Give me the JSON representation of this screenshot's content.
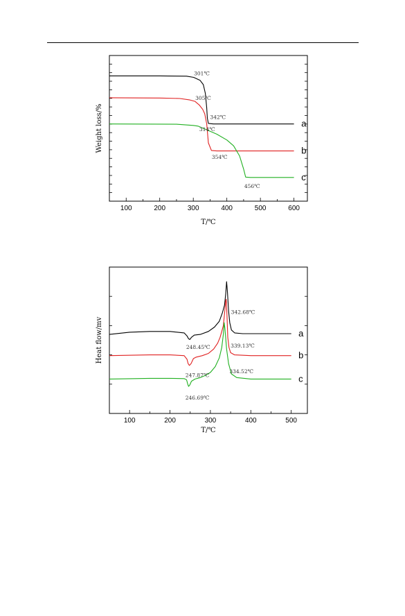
{
  "chart_data": [
    {
      "type": "line",
      "id": "tga",
      "xlabel": "T/℃",
      "ylabel": "Weight loss/%",
      "xlim": [
        50,
        640
      ],
      "ylim": [
        0,
        100
      ],
      "xticks": [
        100,
        200,
        300,
        400,
        500,
        600
      ],
      "y_tick_count": 17,
      "series": [
        {
          "name": "a",
          "color": "#000000",
          "points": [
            [
              50,
              86
            ],
            [
              200,
              86
            ],
            [
              280,
              85.8
            ],
            [
              301,
              85
            ],
            [
              320,
              83
            ],
            [
              330,
              80
            ],
            [
              336,
              74
            ],
            [
              340,
              64
            ],
            [
              342,
              57
            ],
            [
              345,
              53.4
            ],
            [
              360,
              53
            ],
            [
              600,
              53
            ]
          ]
        },
        {
          "name": "b",
          "color": "#e02020",
          "points": [
            [
              50,
              71
            ],
            [
              200,
              70.8
            ],
            [
              260,
              70.5
            ],
            [
              290,
              69.5
            ],
            [
              305,
              68.5
            ],
            [
              318,
              66
            ],
            [
              328,
              63
            ],
            [
              334,
              60
            ],
            [
              340,
              53
            ],
            [
              345,
              40
            ],
            [
              354,
              34.8
            ],
            [
              370,
              34.5
            ],
            [
              600,
              34.5
            ]
          ]
        },
        {
          "name": "c",
          "color": "#20b020",
          "points": [
            [
              50,
              53
            ],
            [
              250,
              52.8
            ],
            [
              300,
              52
            ],
            [
              314,
              51.5
            ],
            [
              340,
              49
            ],
            [
              370,
              46
            ],
            [
              400,
              42
            ],
            [
              420,
              38
            ],
            [
              438,
              31
            ],
            [
              450,
              22
            ],
            [
              456,
              16.5
            ],
            [
              470,
              16.3
            ],
            [
              600,
              16.3
            ]
          ]
        }
      ],
      "annotations": [
        {
          "text": "301℃",
          "x": 302,
          "y": 86.5
        },
        {
          "text": "305℃",
          "x": 306,
          "y": 69.5
        },
        {
          "text": "342℃",
          "x": 350,
          "y": 56.5
        },
        {
          "text": "314℃",
          "x": 318,
          "y": 48
        },
        {
          "text": "354℃",
          "x": 355,
          "y": 29
        },
        {
          "text": "456℃",
          "x": 452,
          "y": 9
        }
      ],
      "curve_labels": [
        {
          "text": "a",
          "x": 622,
          "y": 53
        },
        {
          "text": "b",
          "x": 622,
          "y": 34.5
        },
        {
          "text": "c",
          "x": 622,
          "y": 16.3
        }
      ]
    },
    {
      "type": "line",
      "id": "dsc",
      "xlabel": "T/℃",
      "ylabel": "Heat flow/mv",
      "xlim": [
        50,
        540
      ],
      "ylim": [
        0,
        100
      ],
      "xticks": [
        100,
        200,
        300,
        400,
        500
      ],
      "y_tick_count": 5,
      "series": [
        {
          "name": "a",
          "color": "#000000",
          "points": [
            [
              50,
              54
            ],
            [
              100,
              55.5
            ],
            [
              150,
              56
            ],
            [
              200,
              56
            ],
            [
              235,
              55
            ],
            [
              242,
              53
            ],
            [
              246,
              51
            ],
            [
              249,
              50.5
            ],
            [
              253,
              52
            ],
            [
              260,
              53.5
            ],
            [
              275,
              54
            ],
            [
              295,
              56
            ],
            [
              310,
              59
            ],
            [
              322,
              63
            ],
            [
              330,
              69
            ],
            [
              335,
              74
            ],
            [
              338,
              82
            ],
            [
              340,
              90
            ],
            [
              342,
              84
            ],
            [
              345,
              70
            ],
            [
              348,
              62
            ],
            [
              352,
              57
            ],
            [
              360,
              55
            ],
            [
              380,
              54.5
            ],
            [
              500,
              54.5
            ]
          ]
        },
        {
          "name": "b",
          "color": "#e02020",
          "points": [
            [
              50,
              39.5
            ],
            [
              150,
              40
            ],
            [
              200,
              40
            ],
            [
              235,
              39.5
            ],
            [
              242,
              37
            ],
            [
              245,
              34
            ],
            [
              248,
              32.8
            ],
            [
              252,
              34
            ],
            [
              258,
              37.5
            ],
            [
              265,
              38.5
            ],
            [
              280,
              39.5
            ],
            [
              295,
              41
            ],
            [
              308,
              44
            ],
            [
              318,
              48
            ],
            [
              324,
              52
            ],
            [
              328,
              56
            ],
            [
              332,
              60
            ],
            [
              335,
              68
            ],
            [
              338,
              77
            ],
            [
              339,
              78
            ],
            [
              341,
              68
            ],
            [
              343,
              52
            ],
            [
              346,
              45
            ],
            [
              350,
              41.5
            ],
            [
              360,
              40
            ],
            [
              400,
              39.5
            ],
            [
              500,
              39.5
            ]
          ]
        },
        {
          "name": "c",
          "color": "#20b020",
          "points": [
            [
              50,
              23.5
            ],
            [
              150,
              24
            ],
            [
              200,
              24
            ],
            [
              235,
              23.8
            ],
            [
              241,
              23
            ],
            [
              244,
              20
            ],
            [
              246,
              18.5
            ],
            [
              249,
              19.5
            ],
            [
              253,
              22
            ],
            [
              262,
              23.5
            ],
            [
              275,
              24.5
            ],
            [
              288,
              26
            ],
            [
              300,
              28
            ],
            [
              312,
              32
            ],
            [
              322,
              38
            ],
            [
              328,
              45
            ],
            [
              332,
              54
            ],
            [
              334,
              62
            ],
            [
              336,
              58
            ],
            [
              340,
              44
            ],
            [
              345,
              34
            ],
            [
              352,
              27
            ],
            [
              365,
              24.5
            ],
            [
              400,
              23.5
            ],
            [
              500,
              23.5
            ]
          ]
        }
      ],
      "annotations": [
        {
          "text": "342.68℃",
          "x": 351,
          "y": 68
        },
        {
          "text": "248.45℃",
          "x": 240,
          "y": 44
        },
        {
          "text": "339.13℃",
          "x": 350,
          "y": 45
        },
        {
          "text": "247.87℃",
          "x": 238,
          "y": 25
        },
        {
          "text": "334.52℃",
          "x": 347,
          "y": 27.5
        },
        {
          "text": "246.69℃",
          "x": 238,
          "y": 9.5
        }
      ],
      "curve_labels": [
        {
          "text": "a",
          "x": 518,
          "y": 54.5
        },
        {
          "text": "b",
          "x": 518,
          "y": 39.5
        },
        {
          "text": "c",
          "x": 518,
          "y": 23.5
        }
      ]
    }
  ]
}
